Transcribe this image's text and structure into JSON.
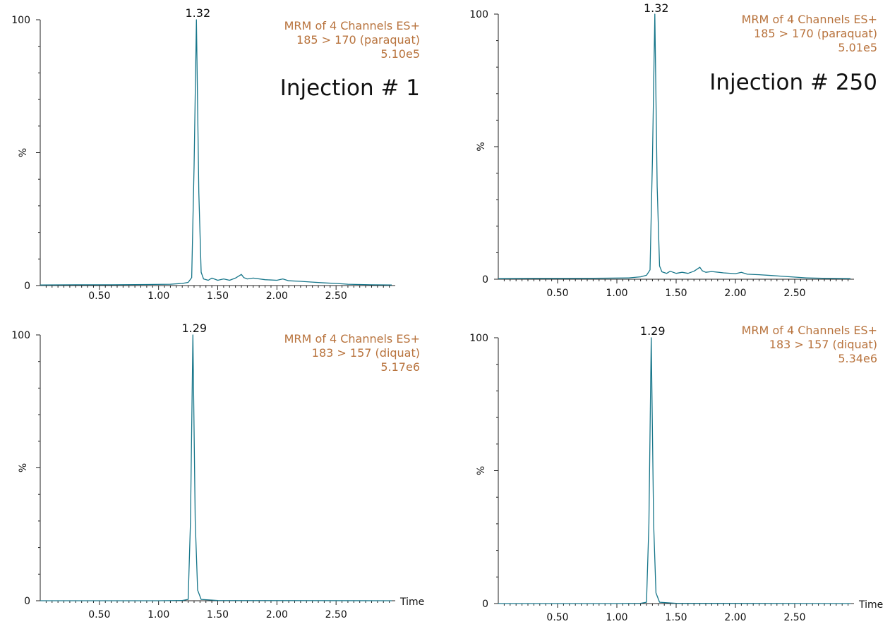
{
  "colors": {
    "trace": "#17768a",
    "header": "#b8733d",
    "axis": "#222222"
  },
  "chart_data": [
    {
      "type": "line",
      "panel": "top-left",
      "injection_label": "Injection # 1",
      "header_lines": [
        "MRM of 4 Channels ES+",
        "185 > 170 (paraquat)",
        "5.10e5"
      ],
      "peak_label": "1.32",
      "ylabel": "%",
      "xlabel": "",
      "xlim": [
        0,
        3.0
      ],
      "ylim": [
        0,
        100
      ],
      "xticks": [
        "0.50",
        "1.00",
        "1.50",
        "2.00",
        "2.50"
      ],
      "yticks": [
        "0",
        "100"
      ],
      "series": [
        {
          "name": "185 > 170 (paraquat)",
          "x": [
            0.0,
            0.3,
            0.6,
            0.9,
            1.1,
            1.2,
            1.25,
            1.28,
            1.3,
            1.32,
            1.34,
            1.36,
            1.38,
            1.42,
            1.45,
            1.5,
            1.55,
            1.6,
            1.65,
            1.7,
            1.72,
            1.75,
            1.8,
            1.9,
            2.0,
            2.05,
            2.1,
            2.2,
            2.3,
            2.4,
            2.5,
            2.6,
            2.7,
            2.8,
            2.97
          ],
          "y": [
            0.2,
            0.3,
            0.3,
            0.4,
            0.5,
            0.8,
            1.2,
            3.0,
            45,
            100,
            35,
            5,
            2.5,
            2.0,
            2.8,
            2.0,
            2.5,
            2.0,
            2.8,
            4.2,
            3.0,
            2.5,
            2.8,
            2.2,
            2.0,
            2.5,
            1.8,
            1.6,
            1.3,
            1.0,
            0.8,
            0.5,
            0.4,
            0.3,
            0.2
          ]
        }
      ]
    },
    {
      "type": "line",
      "panel": "top-right",
      "injection_label": "Injection # 250",
      "header_lines": [
        "MRM of 4 Channels ES+",
        "185 > 170 (paraquat)",
        "5.01e5"
      ],
      "peak_label": "1.32",
      "ylabel": "%",
      "xlabel": "",
      "xlim": [
        0,
        3.0
      ],
      "ylim": [
        0,
        100
      ],
      "xticks": [
        "0.50",
        "1.00",
        "1.50",
        "2.00",
        "2.50"
      ],
      "yticks": [
        "0",
        "100"
      ],
      "series": [
        {
          "name": "185 > 170 (paraquat)",
          "x": [
            0.0,
            0.3,
            0.6,
            0.9,
            1.1,
            1.2,
            1.25,
            1.28,
            1.3,
            1.32,
            1.34,
            1.36,
            1.38,
            1.42,
            1.45,
            1.5,
            1.55,
            1.6,
            1.65,
            1.7,
            1.72,
            1.75,
            1.8,
            1.9,
            2.0,
            2.05,
            2.1,
            2.2,
            2.3,
            2.4,
            2.5,
            2.6,
            2.7,
            2.8,
            2.97
          ],
          "y": [
            0.2,
            0.3,
            0.3,
            0.4,
            0.5,
            0.9,
            1.5,
            3.5,
            45,
            100,
            35,
            5,
            2.8,
            2.2,
            3.0,
            2.2,
            2.6,
            2.2,
            3.0,
            4.5,
            3.2,
            2.6,
            2.9,
            2.4,
            2.1,
            2.6,
            1.9,
            1.7,
            1.4,
            1.1,
            0.8,
            0.5,
            0.4,
            0.3,
            0.2
          ]
        }
      ]
    },
    {
      "type": "line",
      "panel": "bottom-left",
      "injection_label": "",
      "header_lines": [
        "MRM of 4 Channels ES+",
        "183 > 157 (diquat)",
        "5.17e6"
      ],
      "peak_label": "1.29",
      "ylabel": "%",
      "xlabel": "Time",
      "xlim": [
        0,
        3.0
      ],
      "ylim": [
        0,
        100
      ],
      "xticks": [
        "0.50",
        "1.00",
        "1.50",
        "2.00",
        "2.50"
      ],
      "yticks": [
        "0",
        "100"
      ],
      "series": [
        {
          "name": "183 > 157 (diquat)",
          "x": [
            0.0,
            1.0,
            1.2,
            1.25,
            1.27,
            1.29,
            1.31,
            1.33,
            1.36,
            1.5,
            2.97
          ],
          "y": [
            0.0,
            0.0,
            0.1,
            0.5,
            30,
            100,
            30,
            4,
            0.5,
            0.1,
            0.0
          ]
        }
      ]
    },
    {
      "type": "line",
      "panel": "bottom-right",
      "injection_label": "",
      "header_lines": [
        "MRM of 4 Channels ES+",
        "183 > 157 (diquat)",
        "5.34e6"
      ],
      "peak_label": "1.29",
      "ylabel": "%",
      "xlabel": "Time",
      "xlim": [
        0,
        3.0
      ],
      "ylim": [
        0,
        100
      ],
      "xticks": [
        "0.50",
        "1.00",
        "1.50",
        "2.00",
        "2.50"
      ],
      "yticks": [
        "0",
        "100"
      ],
      "series": [
        {
          "name": "183 > 157 (diquat)",
          "x": [
            0.0,
            1.0,
            1.2,
            1.25,
            1.27,
            1.29,
            1.31,
            1.33,
            1.36,
            1.5,
            2.97
          ],
          "y": [
            0.0,
            0.0,
            0.1,
            0.5,
            30,
            100,
            30,
            4,
            0.5,
            0.1,
            0.0
          ]
        }
      ]
    }
  ]
}
